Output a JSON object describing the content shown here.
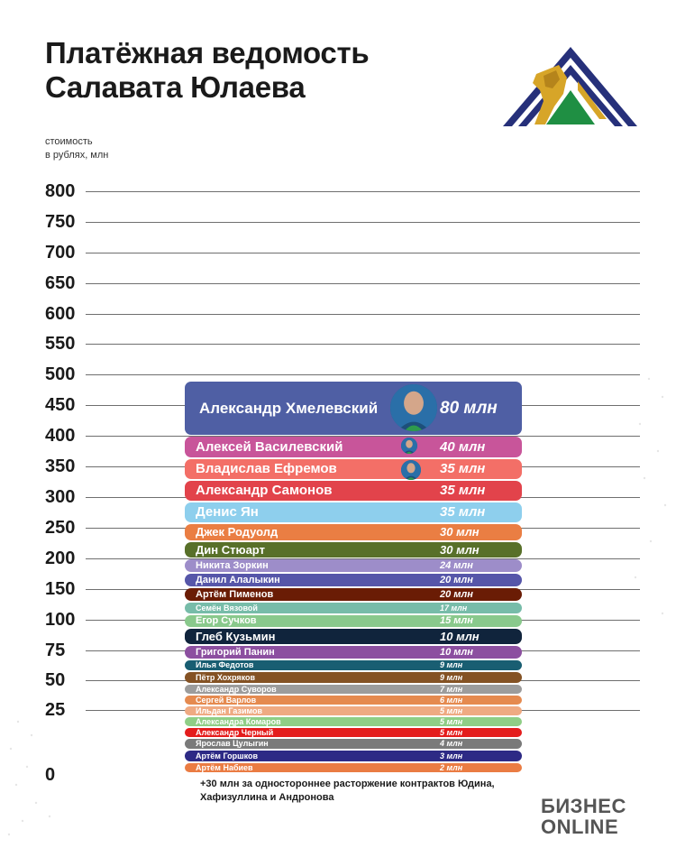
{
  "title": {
    "line1": "Платёжная ведомость",
    "line2": "Салавата Юлаева"
  },
  "axis_caption": {
    "line1": "стоимость",
    "line2": "в рублях, млн"
  },
  "note": "+30 млн за одностороннее расторжение контрактов Юдина, Хафизуллина и Андронова",
  "brand": {
    "line1": "БИЗНЕС",
    "line2": "ONLINE"
  },
  "colors": {
    "background": "#ffffff",
    "gridline": "#6f6f6f",
    "text": "#1a1a1a"
  },
  "chart_data": {
    "type": "bar",
    "stacked": true,
    "ylim": [
      0,
      800
    ],
    "yticks": [
      "0",
      "25",
      "50",
      "75",
      "100",
      "150",
      "200",
      "250",
      "300",
      "350",
      "400",
      "450",
      "500",
      "550",
      "600",
      "650",
      "700",
      "750",
      "800"
    ],
    "grid": true,
    "unit": "млн",
    "series": [
      {
        "name": "Артём Набиев",
        "value": 2,
        "label": "2 млн",
        "color": "#ea7c43"
      },
      {
        "name": "Артём Горшков",
        "value": 3,
        "label": "3 млн",
        "color": "#2d2a85"
      },
      {
        "name": "Ярослав Цулыгин",
        "value": 4,
        "label": "4 млн",
        "color": "#7a7a7a"
      },
      {
        "name": "Александр Черный",
        "value": 5,
        "label": "5 млн",
        "color": "#e41c1c"
      },
      {
        "name": "Александра Комаров",
        "value": 5,
        "label": "5 млн",
        "color": "#8fce86"
      },
      {
        "name": "Ильдан Газимов",
        "value": 5,
        "label": "5 млн",
        "color": "#efaa82"
      },
      {
        "name": "Сергей Варлов",
        "value": 6,
        "label": "6 млн",
        "color": "#e58a4f"
      },
      {
        "name": "Александр Суворов",
        "value": 7,
        "label": "7 млн",
        "color": "#9c9c9c"
      },
      {
        "name": "Пётр Хохряков",
        "value": 9,
        "label": "9 млн",
        "color": "#845224"
      },
      {
        "name": "Илья Федотов",
        "value": 9,
        "label": "9 млн",
        "color": "#195e72"
      },
      {
        "name": "Григорий Панин",
        "value": 10,
        "label": "10 млн",
        "color": "#8c4fa0"
      },
      {
        "name": "Глеб Кузьмин",
        "value": 10,
        "label": "10 млн",
        "color": "#10243c"
      },
      {
        "name": "Егор Сучков",
        "value": 15,
        "label": "15 млн",
        "color": "#89c98c"
      },
      {
        "name": "Семён Вязовой",
        "value": 17,
        "label": "17 млн",
        "color": "#77bca9"
      },
      {
        "name": "Артём Пименов",
        "value": 20,
        "label": "20 млн",
        "color": "#6a1c05"
      },
      {
        "name": "Данил Алалыкин",
        "value": 20,
        "label": "20 млн",
        "color": "#5656a9"
      },
      {
        "name": "Никита Зоркин",
        "value": 24,
        "label": "24 млн",
        "color": "#9d8dc9"
      },
      {
        "name": "Дин Стюарт",
        "value": 30,
        "label": "30 млн",
        "color": "#587029"
      },
      {
        "name": "Джек Родуолд",
        "value": 30,
        "label": "30 млн",
        "color": "#ea7e43"
      },
      {
        "name": "Денис Ян",
        "value": 35,
        "label": "35 млн",
        "color": "#8ecfed"
      },
      {
        "name": "Александр Самонов",
        "value": 35,
        "label": "35 млн",
        "color": "#e2434b"
      },
      {
        "name": "Владислав Ефремов",
        "value": 35,
        "label": "35 млн",
        "color": "#f36f67"
      },
      {
        "name": "Алексей Василевский",
        "value": 40,
        "label": "40 млн",
        "color": "#c8559a"
      },
      {
        "name": "Александр Хмелевский",
        "value": 80,
        "label": "80 млн",
        "color": "#4f5fa4"
      }
    ]
  }
}
